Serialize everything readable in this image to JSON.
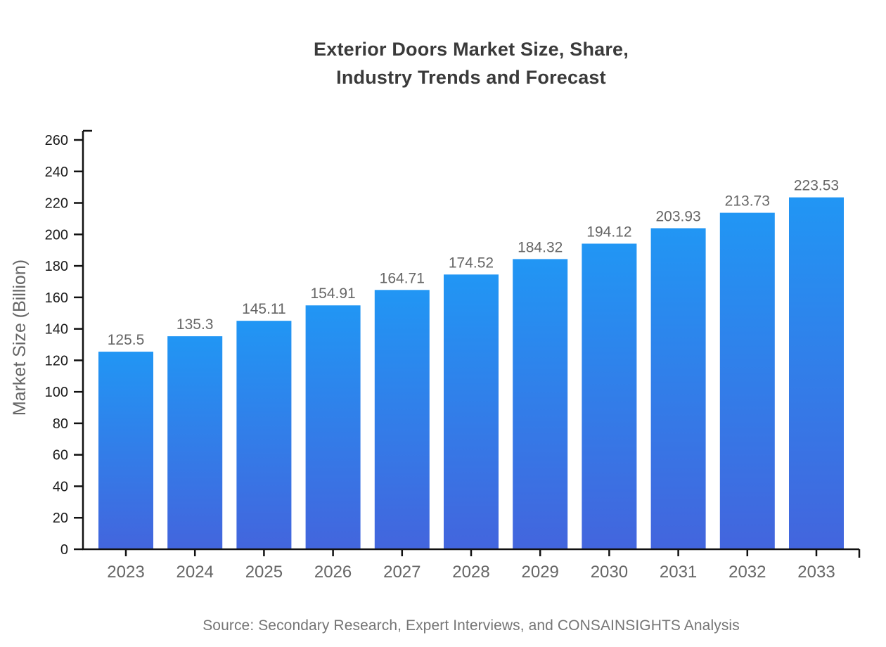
{
  "title": "Exterior Doors Market Size, Share,\nIndustry Trends and Forecast",
  "source": "Source: Secondary Research, Expert Interviews, and CONSAINSIGHTS Analysis",
  "colors": {
    "background": "#ffffff",
    "title": "#3a3a3a",
    "axis": "#111111",
    "ytick_label": "#1a1a1a",
    "xtick_label": "#666666",
    "value_label": "#666666",
    "ylabel": "#666666",
    "source": "#757575",
    "bar_gradient_top": "#2196f4",
    "bar_gradient_bottom": "#4365dd"
  },
  "chart_data": {
    "type": "bar",
    "title": "Exterior Doors Market Size, Share, Industry Trends and Forecast",
    "categories": [
      "2023",
      "2024",
      "2025",
      "2026",
      "2027",
      "2028",
      "2029",
      "2030",
      "2031",
      "2032",
      "2033"
    ],
    "values": [
      125.5,
      135.3,
      145.11,
      154.91,
      164.71,
      174.52,
      184.32,
      194.12,
      203.93,
      213.73,
      223.53
    ],
    "xlabel": "",
    "ylabel": "Market Size (Billion)",
    "ylim": [
      0,
      260
    ],
    "ytick_step": 20,
    "grid": false,
    "legend": "none",
    "value_labels": true
  }
}
